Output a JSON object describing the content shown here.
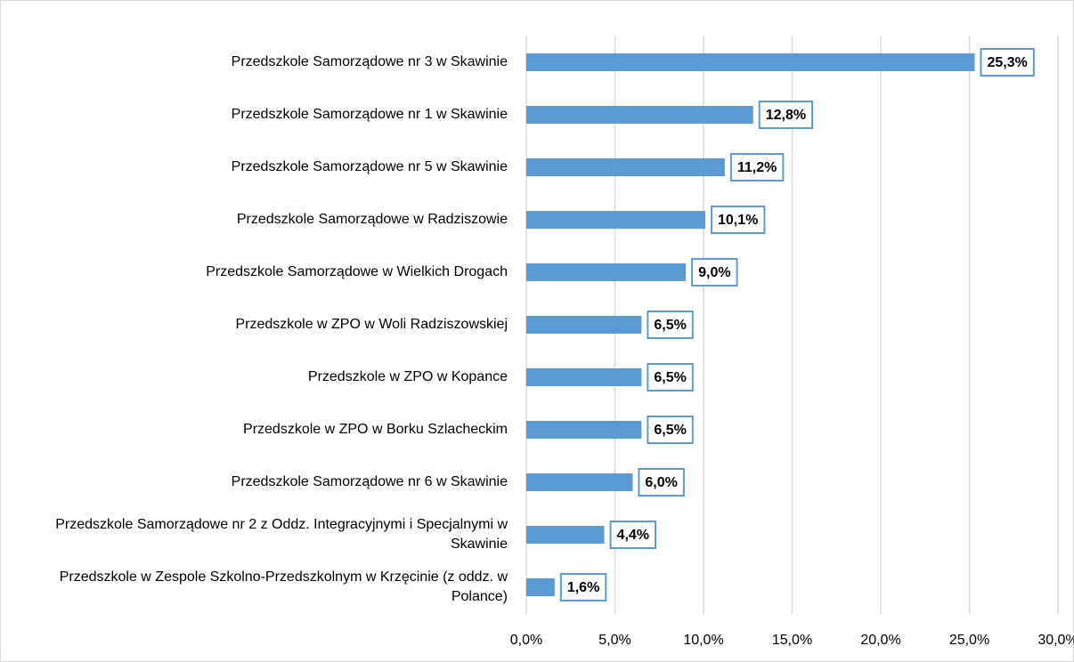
{
  "chart_data": {
    "type": "bar",
    "orientation": "horizontal",
    "categories": [
      "Przedszkole Samorządowe nr 3 w Skawinie",
      "Przedszkole Samorządowe nr 1 w Skawinie",
      "Przedszkole Samorządowe nr 5 w Skawinie",
      "Przedszkole Samorządowe w Radziszowie",
      "Przedszkole Samorządowe w Wielkich Drogach",
      "Przedszkole w ZPO w Woli Radziszowskiej",
      "Przedszkole w ZPO w Kopance",
      "Przedszkole w ZPO w Borku Szlacheckim",
      "Przedszkole Samorządowe nr 6 w Skawinie",
      "Przedszkole Samorządowe nr 2 z Oddz. Integracyjnymi i Specjalnymi w Skawinie",
      "Przedszkole w Zespole Szkolno-Przedszkolnym w Krzęcinie (z oddz. w Polance)"
    ],
    "values": [
      25.3,
      12.8,
      11.2,
      10.1,
      9.0,
      6.5,
      6.5,
      6.5,
      6.0,
      4.4,
      1.6
    ],
    "value_labels": [
      "25,3%",
      "12,8%",
      "11,2%",
      "10,1%",
      "9,0%",
      "6,5%",
      "6,5%",
      "6,5%",
      "6,0%",
      "4,4%",
      "1,6%"
    ],
    "color": "#5b9bd5",
    "xlim": [
      0,
      30
    ],
    "xticks": [
      {
        "value": 0,
        "label": "0,0%"
      },
      {
        "value": 5,
        "label": "5,0%"
      },
      {
        "value": 10,
        "label": "10,0%"
      },
      {
        "value": 15,
        "label": "15,0%"
      },
      {
        "value": 20,
        "label": "20,0%"
      },
      {
        "value": 25,
        "label": "25,0%"
      },
      {
        "value": 30,
        "label": "30,0%"
      }
    ],
    "grid": true
  }
}
